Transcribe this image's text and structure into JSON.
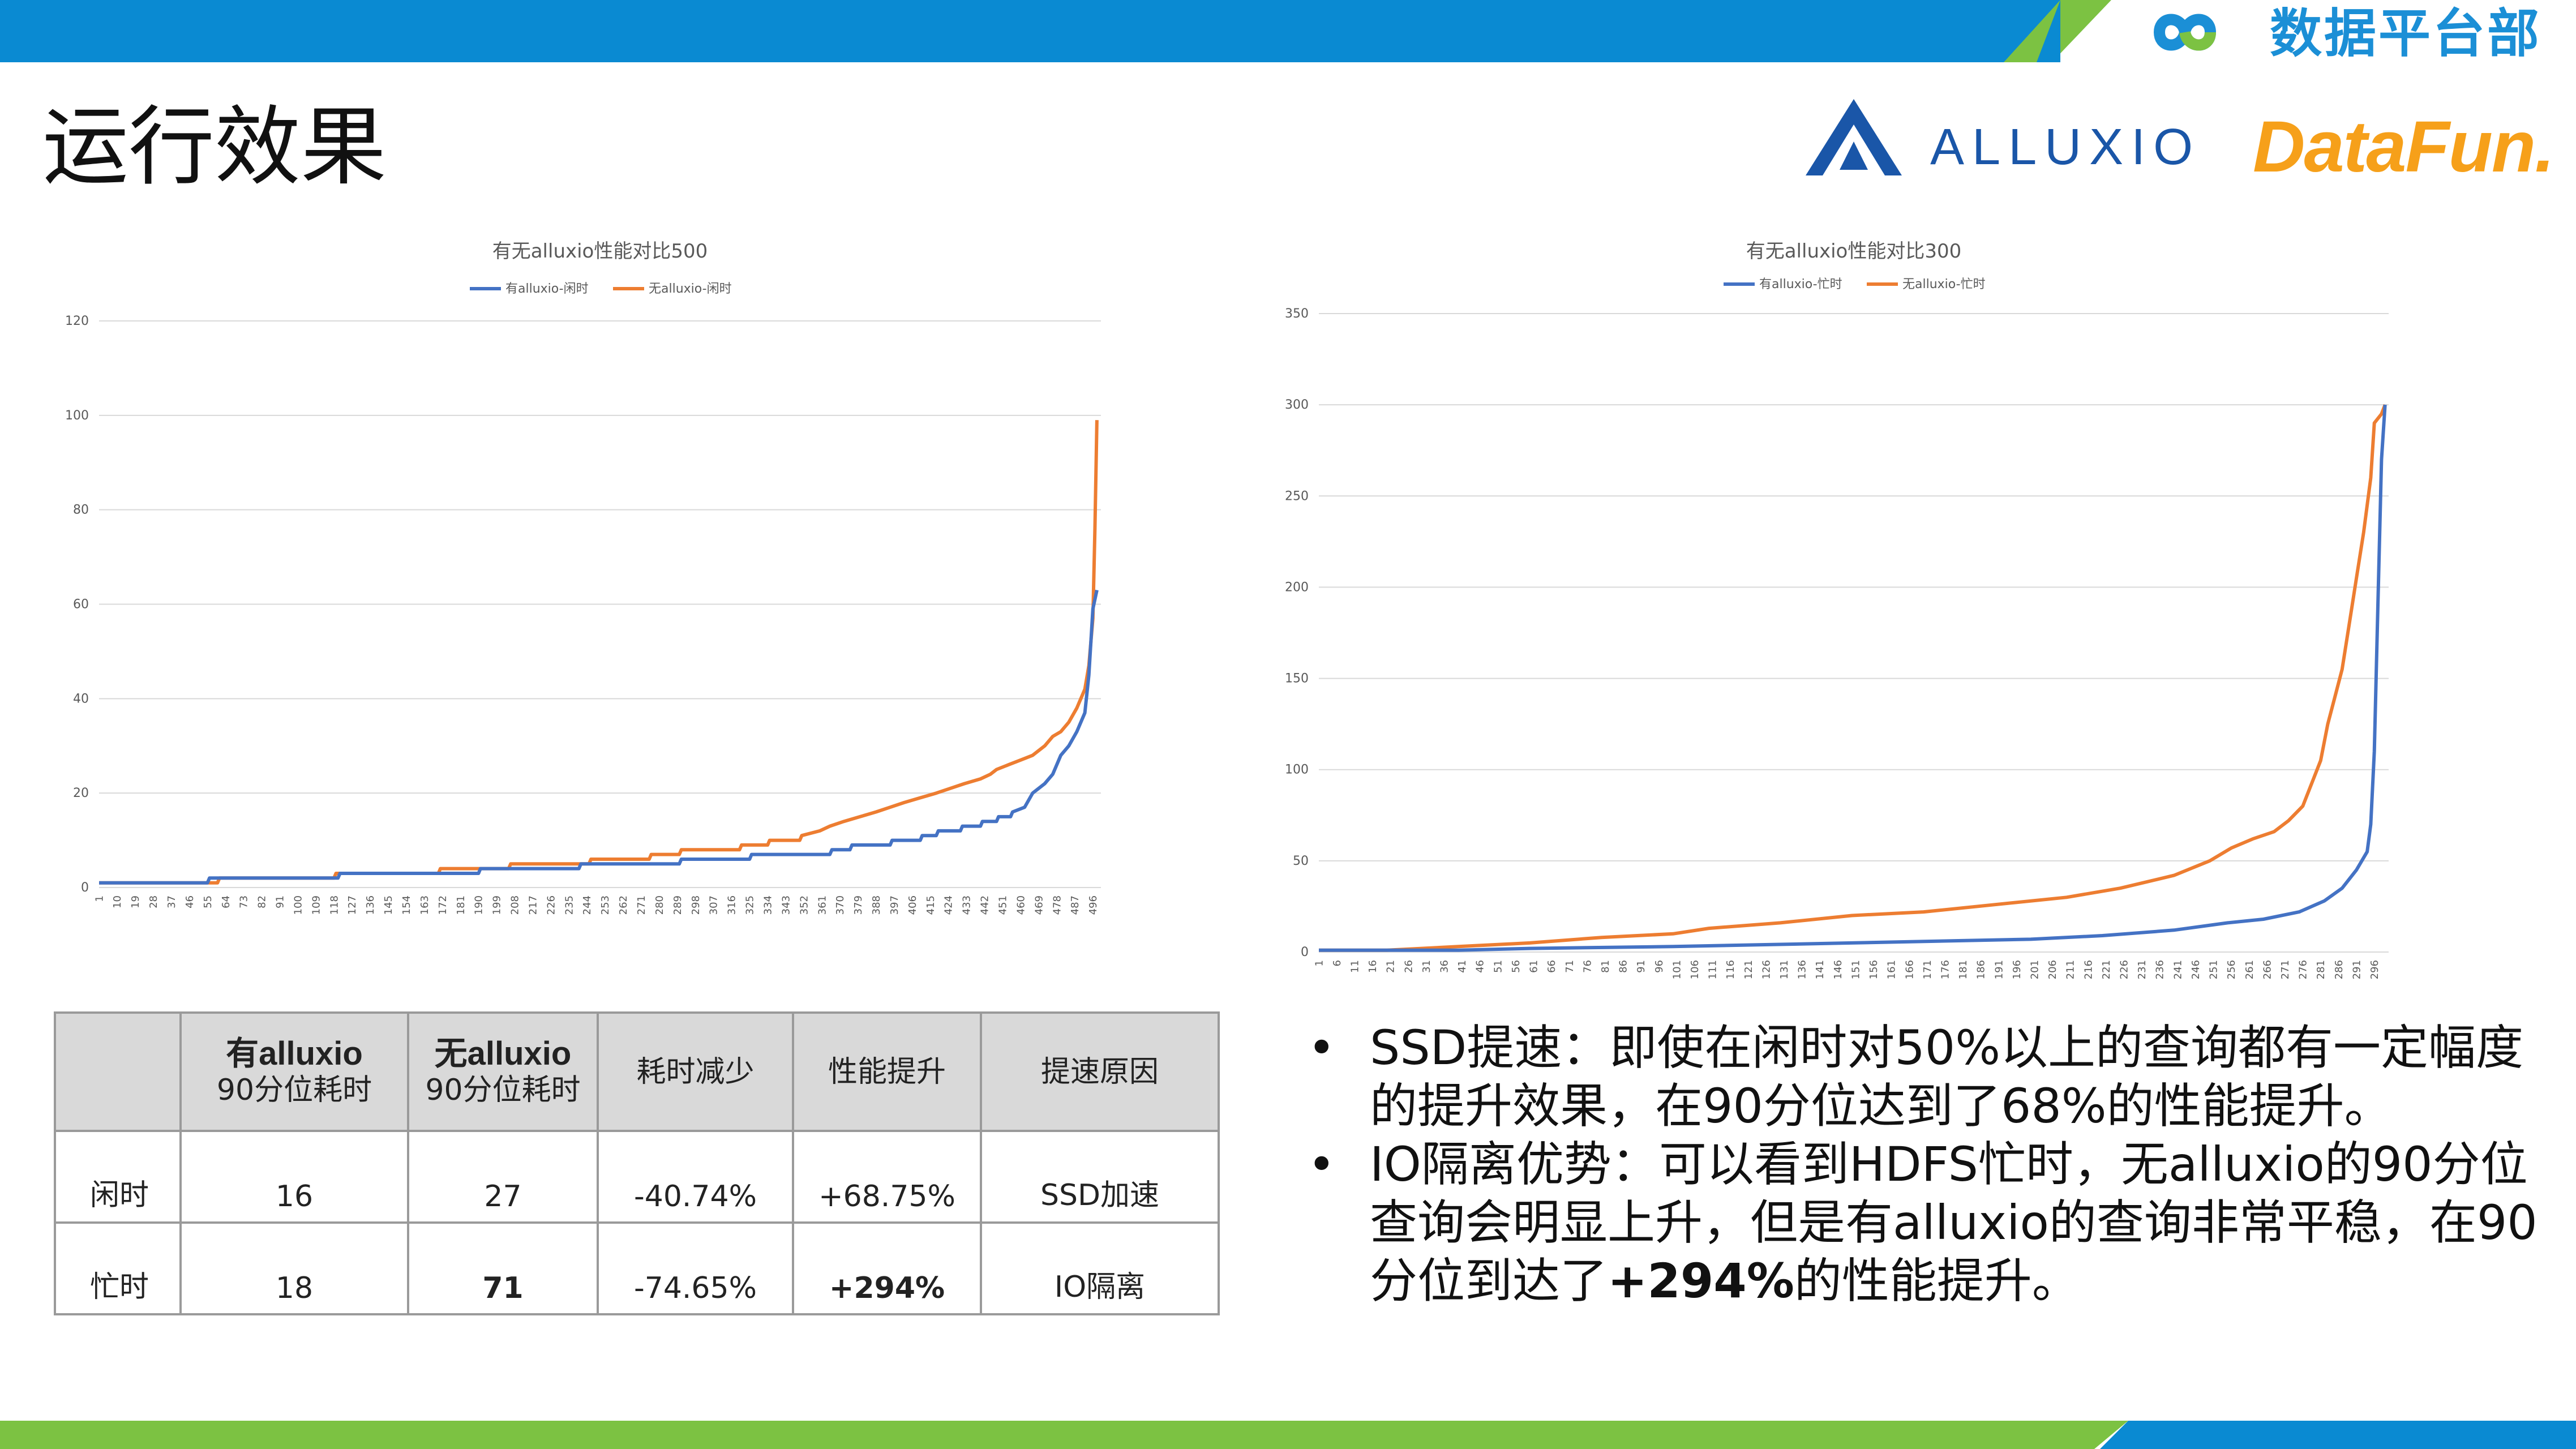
{
  "header": {
    "brand": "数据平台部",
    "colors": {
      "primary_blue": "#0a8ad2",
      "accent_green": "#7cc242"
    }
  },
  "title": "运行效果",
  "logos": {
    "alluxio": "ALLUXIO",
    "datafun": "DataFun."
  },
  "charts": [
    {
      "title": "有无alluxio性能对比500",
      "type": "line",
      "series": [
        {
          "name": "有alluxio-闲时",
          "color": "#4472c4"
        },
        {
          "name": "无alluxio-闲时",
          "color": "#ed7d31"
        }
      ],
      "ylim": [
        0,
        120
      ],
      "yticks": [
        "0",
        "20",
        "40",
        "60",
        "80",
        "100",
        "120"
      ],
      "xticks": [
        "1",
        "10",
        "19",
        "28",
        "37",
        "46",
        "55",
        "64",
        "73",
        "82",
        "91",
        "100",
        "109",
        "118",
        "127",
        "136",
        "145",
        "154",
        "163",
        "172",
        "181",
        "190",
        "199",
        "208",
        "217",
        "226",
        "235",
        "244",
        "253",
        "262",
        "271",
        "280",
        "289",
        "298",
        "307",
        "316",
        "325",
        "334",
        "343",
        "352",
        "361",
        "370",
        "379",
        "388",
        "397",
        "406",
        "415",
        "424",
        "433",
        "442",
        "451",
        "460",
        "469",
        "478",
        "487",
        "496"
      ]
    },
    {
      "title": "有无alluxio性能对比300",
      "type": "line",
      "series": [
        {
          "name": "有alluxio-忙时",
          "color": "#4472c4"
        },
        {
          "name": "无alluxio-忙时",
          "color": "#ed7d31"
        }
      ],
      "ylim": [
        0,
        350
      ],
      "yticks": [
        "0",
        "50",
        "100",
        "150",
        "200",
        "250",
        "300",
        "350"
      ],
      "xticks": [
        "1",
        "6",
        "11",
        "16",
        "21",
        "26",
        "31",
        "36",
        "41",
        "46",
        "51",
        "56",
        "61",
        "66",
        "71",
        "76",
        "81",
        "86",
        "91",
        "96",
        "101",
        "106",
        "111",
        "116",
        "121",
        "126",
        "131",
        "136",
        "141",
        "146",
        "151",
        "156",
        "161",
        "166",
        "171",
        "176",
        "181",
        "186",
        "191",
        "196",
        "201",
        "206",
        "211",
        "216",
        "221",
        "226",
        "231",
        "236",
        "241",
        "246",
        "251",
        "256",
        "261",
        "266",
        "271",
        "276",
        "281",
        "286",
        "291",
        "296"
      ]
    }
  ],
  "chart_data": [
    {
      "type": "line",
      "title": "有无alluxio性能对比500",
      "xlabel": "",
      "ylabel": "",
      "ylim": [
        0,
        120
      ],
      "grid": true,
      "legend": "top",
      "x_range": [
        1,
        500
      ],
      "series": [
        {
          "name": "有alluxio-闲时",
          "points": [
            [
              1,
              1
            ],
            [
              55,
              1
            ],
            [
              56,
              2
            ],
            [
              120,
              2
            ],
            [
              121,
              3
            ],
            [
              190,
              3
            ],
            [
              191,
              4
            ],
            [
              240,
              4
            ],
            [
              241,
              5
            ],
            [
              290,
              5
            ],
            [
              291,
              6
            ],
            [
              325,
              6
            ],
            [
              326,
              7
            ],
            [
              365,
              7
            ],
            [
              366,
              8
            ],
            [
              375,
              8
            ],
            [
              376,
              9
            ],
            [
              395,
              9
            ],
            [
              396,
              10
            ],
            [
              410,
              10
            ],
            [
              411,
              11
            ],
            [
              418,
              11
            ],
            [
              419,
              12
            ],
            [
              430,
              12
            ],
            [
              431,
              13
            ],
            [
              440,
              13
            ],
            [
              441,
              14
            ],
            [
              448,
              14
            ],
            [
              449,
              15
            ],
            [
              455,
              15
            ],
            [
              456,
              16
            ],
            [
              462,
              17
            ],
            [
              466,
              20
            ],
            [
              472,
              22
            ],
            [
              476,
              24
            ],
            [
              480,
              28
            ],
            [
              484,
              30
            ],
            [
              488,
              33
            ],
            [
              492,
              37
            ],
            [
              494,
              45
            ],
            [
              496,
              59
            ],
            [
              498,
              63
            ]
          ]
        },
        {
          "name": "无alluxio-闲时",
          "points": [
            [
              1,
              1
            ],
            [
              60,
              1
            ],
            [
              61,
              2
            ],
            [
              118,
              2
            ],
            [
              119,
              3
            ],
            [
              170,
              3
            ],
            [
              171,
              4
            ],
            [
              205,
              4
            ],
            [
              206,
              5
            ],
            [
              245,
              5
            ],
            [
              246,
              6
            ],
            [
              275,
              6
            ],
            [
              276,
              7
            ],
            [
              290,
              7
            ],
            [
              291,
              8
            ],
            [
              320,
              8
            ],
            [
              321,
              9
            ],
            [
              334,
              9
            ],
            [
              335,
              10
            ],
            [
              350,
              10
            ],
            [
              351,
              11
            ],
            [
              360,
              12
            ],
            [
              365,
              13
            ],
            [
              372,
              14
            ],
            [
              380,
              15
            ],
            [
              388,
              16
            ],
            [
              395,
              17
            ],
            [
              402,
              18
            ],
            [
              410,
              19
            ],
            [
              418,
              20
            ],
            [
              425,
              21
            ],
            [
              432,
              22
            ],
            [
              440,
              23
            ],
            [
              445,
              24
            ],
            [
              448,
              25
            ],
            [
              454,
              26
            ],
            [
              460,
              27
            ],
            [
              466,
              28
            ],
            [
              472,
              30
            ],
            [
              476,
              32
            ],
            [
              480,
              33
            ],
            [
              484,
              35
            ],
            [
              488,
              38
            ],
            [
              492,
              42
            ],
            [
              494,
              47
            ],
            [
              496,
              57
            ],
            [
              497,
              76
            ],
            [
              498,
              99
            ]
          ]
        }
      ]
    },
    {
      "type": "line",
      "title": "有无alluxio性能对比300",
      "xlabel": "",
      "ylabel": "",
      "ylim": [
        0,
        350
      ],
      "grid": true,
      "legend": "top",
      "x_range": [
        1,
        300
      ],
      "series": [
        {
          "name": "有alluxio-忙时",
          "points": [
            [
              1,
              1
            ],
            [
              40,
              1
            ],
            [
              60,
              2
            ],
            [
              100,
              3
            ],
            [
              150,
              5
            ],
            [
              200,
              7
            ],
            [
              220,
              9
            ],
            [
              240,
              12
            ],
            [
              255,
              16
            ],
            [
              265,
              18
            ],
            [
              275,
              22
            ],
            [
              282,
              28
            ],
            [
              287,
              35
            ],
            [
              291,
              45
            ],
            [
              294,
              55
            ],
            [
              295,
              70
            ],
            [
              296,
              110
            ],
            [
              297,
              190
            ],
            [
              298,
              270
            ],
            [
              299,
              300
            ]
          ]
        },
        {
          "name": "无alluxio-忙时",
          "points": [
            [
              1,
              1
            ],
            [
              20,
              1
            ],
            [
              40,
              3
            ],
            [
              60,
              5
            ],
            [
              80,
              8
            ],
            [
              100,
              10
            ],
            [
              110,
              13
            ],
            [
              130,
              16
            ],
            [
              150,
              20
            ],
            [
              170,
              22
            ],
            [
              190,
              26
            ],
            [
              210,
              30
            ],
            [
              225,
              35
            ],
            [
              240,
              42
            ],
            [
              250,
              50
            ],
            [
              256,
              57
            ],
            [
              262,
              62
            ],
            [
              268,
              66
            ],
            [
              272,
              72
            ],
            [
              276,
              80
            ],
            [
              279,
              95
            ],
            [
              281,
              105
            ],
            [
              283,
              125
            ],
            [
              285,
              140
            ],
            [
              287,
              155
            ],
            [
              289,
              180
            ],
            [
              291,
              205
            ],
            [
              293,
              230
            ],
            [
              295,
              260
            ],
            [
              296,
              290
            ],
            [
              298,
              295
            ],
            [
              299,
              300
            ]
          ]
        }
      ]
    }
  ],
  "table": {
    "headers": [
      {
        "line1": "",
        "line2": ""
      },
      {
        "line1": "有alluxio",
        "line2": "90分位耗时"
      },
      {
        "line1": "无alluxio",
        "line2": "90分位耗时"
      },
      {
        "line1": "耗时减少",
        "line2": ""
      },
      {
        "line1": "性能提升",
        "line2": ""
      },
      {
        "line1": "提速原因",
        "line2": ""
      }
    ],
    "rows": [
      {
        "label": "闲时",
        "with": "16",
        "without": "27",
        "reduction": "-40.74%",
        "improvement": "+68.75%",
        "reason": "SSD加速"
      },
      {
        "label": "忙时",
        "with": "18",
        "without": "71",
        "reduction": "-74.65%",
        "improvement": "+294%",
        "reason": "IO隔离"
      }
    ]
  },
  "bullets": {
    "marker": "•",
    "b1": "SSD提速：即使在闲时对50%以上的查询都有一定幅度的提升效果，在90分位达到了68%的性能提升。",
    "b2_pre": "IO隔离优势：可以看到HDFS忙时，无alluxio的90分位查询会明显上升，但是有alluxio的查询非常平稳，在90分位到达了",
    "b2_bold": "+294%",
    "b2_post": "的性能提升。"
  }
}
